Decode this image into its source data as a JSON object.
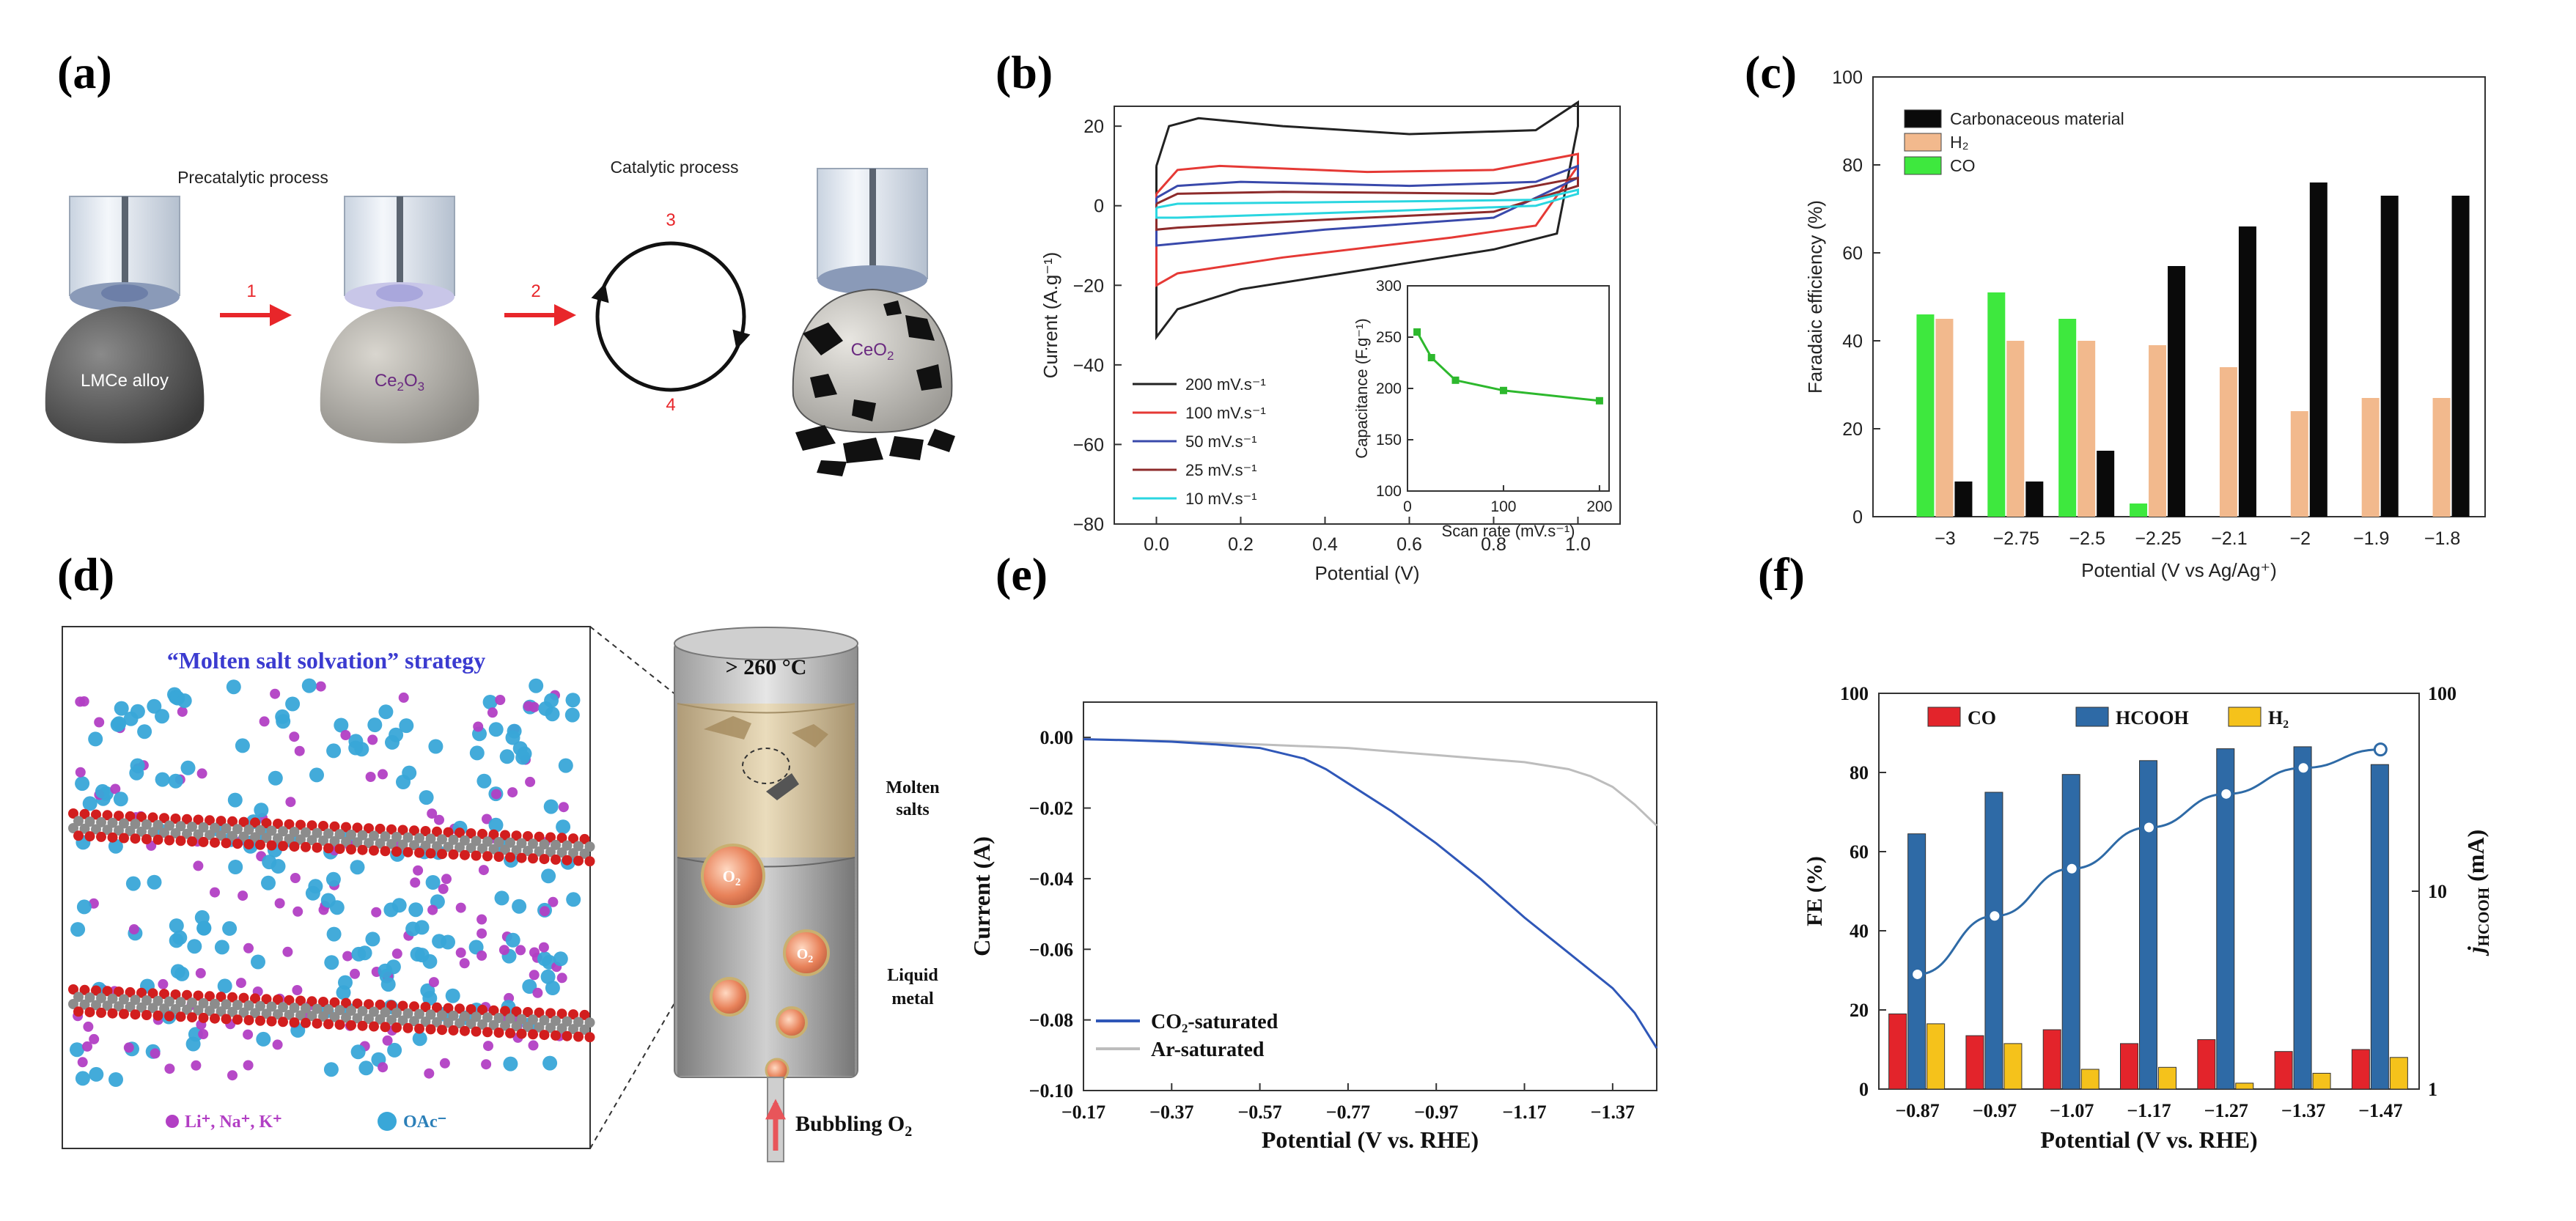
{
  "panels": {
    "a": {
      "label": "(a)",
      "precatalytic": "Precatalytic process",
      "catalytic": "Catalytic process",
      "step1": "1",
      "step2": "2",
      "step3": "3",
      "step4": "4",
      "drop1": "LMCe alloy",
      "drop2_base": "Ce",
      "drop2_sub1": "2",
      "drop2_mid": "O",
      "drop2_sub2": "3",
      "drop3_base": "CeO",
      "drop3_sub": "2",
      "colors": {
        "arrow": "#e8262a",
        "step_text": "#e8262a",
        "drop_text": "#6a2a80"
      }
    },
    "b": {
      "label": "(b)"
    },
    "c": {
      "label": "(c)"
    },
    "d": {
      "label": "(d)",
      "strategy": "“Molten salt solvation” strategy",
      "temperature": "> 260 °C",
      "molten": "Molten",
      "salts": "salts",
      "liquid": "Liquid",
      "metal": "metal",
      "bubbling_base": "Bubbling O",
      "bubbling_sub": "2",
      "o2_base": "O",
      "o2_sub": "2",
      "legend_ions": "Li⁺, Na⁺, K⁺",
      "legend_oac": "OAc⁻",
      "colors": {
        "ion": "#b23fc4",
        "oac": "#39a7d8",
        "title": "#3b3bd0"
      }
    },
    "e": {
      "label": "(e)"
    },
    "f": {
      "label": "(f)"
    }
  },
  "chart_data": [
    {
      "id": "b",
      "type": "line",
      "xlabel": "Potential (V)",
      "ylabel": "Current (A.g⁻¹)",
      "xlim": [
        -0.1,
        1.1
      ],
      "ylim": [
        -80,
        25
      ],
      "xticks": [
        0.0,
        0.2,
        0.4,
        0.6,
        0.8,
        1.0
      ],
      "xtick_labels": [
        "0.0",
        "0.2",
        "0.4",
        "0.6",
        "0.8",
        "1.0"
      ],
      "yticks": [
        -80,
        -60,
        -40,
        -20,
        0,
        20
      ],
      "ytick_labels": [
        "−80",
        "−60",
        "−40",
        "−20",
        "0",
        "20"
      ],
      "legend_position": "bottom-left",
      "series": [
        {
          "name": "200 mV.s⁻¹",
          "color": "#222222",
          "upper": [
            [
              0.0,
              10
            ],
            [
              0.03,
              20
            ],
            [
              0.1,
              22
            ],
            [
              0.3,
              20
            ],
            [
              0.6,
              18
            ],
            [
              0.9,
              19
            ],
            [
              1.0,
              26
            ]
          ],
          "lower": [
            [
              0.0,
              -33
            ],
            [
              0.05,
              -26
            ],
            [
              0.2,
              -21
            ],
            [
              0.5,
              -16
            ],
            [
              0.8,
              -11
            ],
            [
              0.95,
              -7
            ],
            [
              1.0,
              20
            ]
          ]
        },
        {
          "name": "100 mV.s⁻¹",
          "color": "#e53935",
          "upper": [
            [
              0.0,
              3
            ],
            [
              0.05,
              9
            ],
            [
              0.15,
              10
            ],
            [
              0.5,
              8.5
            ],
            [
              0.8,
              9
            ],
            [
              1.0,
              13
            ]
          ],
          "lower": [
            [
              0.0,
              -20
            ],
            [
              0.05,
              -17
            ],
            [
              0.3,
              -13
            ],
            [
              0.7,
              -8
            ],
            [
              0.9,
              -5
            ],
            [
              1.0,
              10
            ]
          ]
        },
        {
          "name": "50 mV.s⁻¹",
          "color": "#3949ab",
          "upper": [
            [
              0.0,
              2
            ],
            [
              0.05,
              5
            ],
            [
              0.2,
              6
            ],
            [
              0.6,
              5
            ],
            [
              0.9,
              6
            ],
            [
              1.0,
              10
            ]
          ],
          "lower": [
            [
              0.0,
              -10
            ],
            [
              0.05,
              -9.5
            ],
            [
              0.4,
              -6
            ],
            [
              0.8,
              -3
            ],
            [
              1.0,
              7
            ]
          ]
        },
        {
          "name": "25 mV.s⁻¹",
          "color": "#8d2b2b",
          "upper": [
            [
              0.0,
              0.5
            ],
            [
              0.05,
              3
            ],
            [
              0.3,
              3.5
            ],
            [
              0.8,
              3
            ],
            [
              1.0,
              7
            ]
          ],
          "lower": [
            [
              0.0,
              -6
            ],
            [
              0.05,
              -5.5
            ],
            [
              0.4,
              -3.5
            ],
            [
              0.8,
              -1.5
            ],
            [
              1.0,
              5
            ]
          ]
        },
        {
          "name": "10 mV.s⁻¹",
          "color": "#2ad6e0",
          "upper": [
            [
              0.0,
              -0.5
            ],
            [
              0.05,
              0.5
            ],
            [
              0.5,
              1
            ],
            [
              0.9,
              1.5
            ],
            [
              1.0,
              4
            ]
          ],
          "lower": [
            [
              0.0,
              -3
            ],
            [
              0.05,
              -3
            ],
            [
              0.5,
              -1.5
            ],
            [
              0.9,
              0
            ],
            [
              1.0,
              3
            ]
          ]
        }
      ],
      "inset": {
        "type": "line",
        "xlabel": "Scan rate (mV.s⁻¹)",
        "ylabel": "Capacitance (F.g⁻¹)",
        "xlim": [
          0,
          210
        ],
        "ylim": [
          100,
          300
        ],
        "xticks": [
          0,
          100,
          200
        ],
        "xtick_labels": [
          "0",
          "100",
          "200"
        ],
        "yticks": [
          100,
          150,
          200,
          250,
          300
        ],
        "ytick_labels": [
          "100",
          "150",
          "200",
          "250",
          "300"
        ],
        "color": "#2db82d",
        "x": [
          10,
          25,
          50,
          100,
          200
        ],
        "y": [
          255,
          230,
          208,
          198,
          188
        ]
      }
    },
    {
      "id": "c",
      "type": "bar",
      "xlabel": "Potential (V vs Ag/Ag⁺)",
      "ylabel": "Faradaic efficiency (%)",
      "ylim": [
        0,
        100
      ],
      "yticks": [
        0,
        20,
        40,
        60,
        80,
        100
      ],
      "ytick_labels": [
        "0",
        "20",
        "40",
        "60",
        "80",
        "100"
      ],
      "categories": [
        "−3",
        "−2.75",
        "−2.5",
        "−2.25",
        "−2.1",
        "−2",
        "−1.9",
        "−1.8"
      ],
      "legend_position": "top-left",
      "series": [
        {
          "name": "Carbonaceous material",
          "color": "#0a0a0a",
          "values": [
            8,
            8,
            15,
            57,
            66,
            76,
            73,
            73
          ]
        },
        {
          "name": "H₂",
          "color": "#f2b98d",
          "values": [
            45,
            40,
            40,
            39,
            34,
            24,
            27,
            27
          ]
        },
        {
          "name": "CO",
          "color": "#3ee83e",
          "values": [
            46,
            51,
            45,
            3,
            0,
            0,
            0,
            0
          ]
        }
      ],
      "draw_order": [
        "CO",
        "H₂",
        "Carbonaceous material"
      ]
    },
    {
      "id": "e",
      "type": "line",
      "xlabel": "Potential (V vs. RHE)",
      "ylabel": "Current (A)",
      "xlim": [
        -0.17,
        -1.47
      ],
      "ylim": [
        -0.1,
        0.01
      ],
      "xticks": [
        -0.17,
        -0.37,
        -0.57,
        -0.77,
        -0.97,
        -1.17,
        -1.37
      ],
      "xtick_labels": [
        "−0.17",
        "−0.37",
        "−0.57",
        "−0.77",
        "−0.97",
        "−1.17",
        "−1.37"
      ],
      "yticks": [
        -0.1,
        -0.08,
        -0.06,
        -0.04,
        -0.02,
        0.0
      ],
      "ytick_labels": [
        "−0.10",
        "−0.08",
        "−0.06",
        "−0.04",
        "−0.02",
        "0.00"
      ],
      "legend_position": "bottom-left",
      "series": [
        {
          "name": "CO₂-saturated",
          "color": "#2f57b8",
          "x": [
            -0.17,
            -0.27,
            -0.37,
            -0.47,
            -0.57,
            -0.67,
            -0.72,
            -0.77,
            -0.87,
            -0.97,
            -1.07,
            -1.17,
            -1.27,
            -1.37,
            -1.42,
            -1.47
          ],
          "y": [
            -0.0005,
            -0.0008,
            -0.0012,
            -0.002,
            -0.003,
            -0.006,
            -0.009,
            -0.013,
            -0.021,
            -0.03,
            -0.04,
            -0.051,
            -0.061,
            -0.071,
            -0.078,
            -0.088
          ]
        },
        {
          "name": "Ar-saturated",
          "color": "#bdbdbd",
          "x": [
            -0.17,
            -0.37,
            -0.57,
            -0.77,
            -0.87,
            -0.97,
            -1.07,
            -1.17,
            -1.27,
            -1.32,
            -1.37,
            -1.42,
            -1.47
          ],
          "y": [
            -0.0005,
            -0.001,
            -0.002,
            -0.003,
            -0.004,
            -0.005,
            -0.006,
            -0.007,
            -0.009,
            -0.011,
            -0.014,
            -0.019,
            -0.025
          ]
        }
      ]
    },
    {
      "id": "f",
      "type": "bar",
      "xlabel": "Potential (V vs. RHE)",
      "ylabel": "FE (%)",
      "y2label_base": "j",
      "y2label_sub": "HCOOH",
      "y2label_unit": " (mA)",
      "ylim": [
        0,
        100
      ],
      "yticks": [
        0,
        20,
        40,
        60,
        80,
        100
      ],
      "ytick_labels": [
        "0",
        "20",
        "40",
        "60",
        "80",
        "100"
      ],
      "y2_scale": "log",
      "y2lim": [
        1,
        100
      ],
      "y2ticks": [
        1,
        10,
        100
      ],
      "y2tick_labels": [
        "1",
        "10",
        "100"
      ],
      "categories": [
        "−0.87",
        "−0.97",
        "−1.07",
        "−1.17",
        "−1.27",
        "−1.37",
        "−1.47"
      ],
      "legend_position": "top",
      "series": [
        {
          "name": "CO",
          "color": "#e3242b",
          "values": [
            19,
            13.5,
            15,
            11.5,
            12.5,
            9.5,
            10
          ]
        },
        {
          "name": "HCOOH",
          "color": "#2e6aa6",
          "values": [
            64.5,
            75,
            79.5,
            83,
            86,
            86.5,
            82
          ]
        },
        {
          "name": "H₂",
          "color": "#f5c21b",
          "values": [
            16.5,
            11.5,
            5,
            5.5,
            1.5,
            4,
            8
          ]
        }
      ],
      "line": {
        "name": "j_HCOOH",
        "color": "#2e6aa6",
        "values": [
          3.8,
          7.5,
          13,
          21,
          31,
          42,
          52
        ]
      }
    }
  ]
}
